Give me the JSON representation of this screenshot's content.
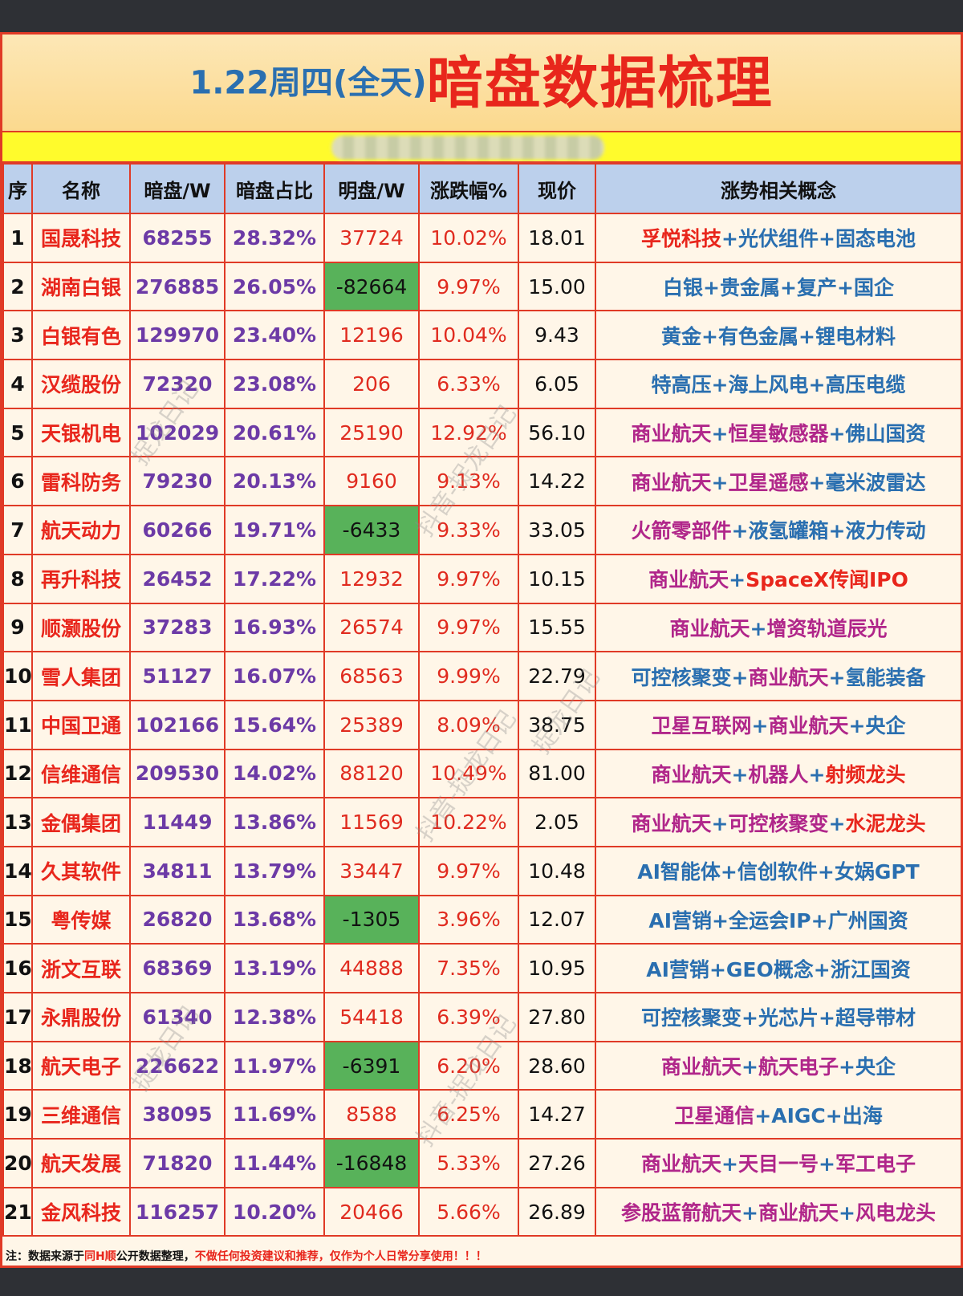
{
  "title": {
    "date": "1.22周四(全天)",
    "main": "暗盘数据梳理"
  },
  "headers": [
    "序",
    "名称",
    "暗盘/W",
    "暗盘占比",
    "明盘/W",
    "涨跌幅%",
    "现价",
    "涨势相关概念"
  ],
  "rows": [
    {
      "idx": "1",
      "name": "国晟科技",
      "dark": "68255",
      "ratio": "28.32%",
      "lit": "37724",
      "lit_negative": false,
      "change": "10.02%",
      "price": "18.01",
      "concept": [
        {
          "t": "孚悦科技",
          "c": "red"
        },
        {
          "t": "光伏组件",
          "c": "blue"
        },
        {
          "t": "固态电池",
          "c": "blue"
        }
      ]
    },
    {
      "idx": "2",
      "name": "湖南白银",
      "dark": "276885",
      "ratio": "26.05%",
      "lit": "-82664",
      "lit_negative": true,
      "change": "9.97%",
      "price": "15.00",
      "concept": [
        {
          "t": "白银",
          "c": "blue"
        },
        {
          "t": "贵金属",
          "c": "blue"
        },
        {
          "t": "复产",
          "c": "blue"
        },
        {
          "t": "国企",
          "c": "blue"
        }
      ]
    },
    {
      "idx": "3",
      "name": "白银有色",
      "dark": "129970",
      "ratio": "23.40%",
      "lit": "12196",
      "lit_negative": false,
      "change": "10.04%",
      "price": "9.43",
      "concept": [
        {
          "t": "黄金",
          "c": "blue"
        },
        {
          "t": "有色金属",
          "c": "blue"
        },
        {
          "t": "锂电材料",
          "c": "blue"
        }
      ]
    },
    {
      "idx": "4",
      "name": "汉缆股份",
      "dark": "72320",
      "ratio": "23.08%",
      "lit": "206",
      "lit_negative": false,
      "change": "6.33%",
      "price": "6.05",
      "concept": [
        {
          "t": "特高压",
          "c": "blue"
        },
        {
          "t": "海上风电",
          "c": "blue"
        },
        {
          "t": "高压电缆",
          "c": "blue"
        }
      ]
    },
    {
      "idx": "5",
      "name": "天银机电",
      "dark": "102029",
      "ratio": "20.61%",
      "lit": "25190",
      "lit_negative": false,
      "change": "12.92%",
      "price": "56.10",
      "concept": [
        {
          "t": "商业航天",
          "c": "purple"
        },
        {
          "t": "恒星敏感器",
          "c": "purple"
        },
        {
          "t": "佛山国资",
          "c": "blue"
        }
      ]
    },
    {
      "idx": "6",
      "name": "雷科防务",
      "dark": "79230",
      "ratio": "20.13%",
      "lit": "9160",
      "lit_negative": false,
      "change": "9.13%",
      "price": "14.22",
      "concept": [
        {
          "t": "商业航天",
          "c": "purple"
        },
        {
          "t": "卫星遥感",
          "c": "purple"
        },
        {
          "t": "毫米波雷达",
          "c": "blue"
        }
      ]
    },
    {
      "idx": "7",
      "name": "航天动力",
      "dark": "60266",
      "ratio": "19.71%",
      "lit": "-6433",
      "lit_negative": true,
      "change": "9.33%",
      "price": "33.05",
      "concept": [
        {
          "t": "火箭零部件",
          "c": "purple"
        },
        {
          "t": "液氢罐箱",
          "c": "blue"
        },
        {
          "t": "液力传动",
          "c": "blue"
        }
      ]
    },
    {
      "idx": "8",
      "name": "再升科技",
      "dark": "26452",
      "ratio": "17.22%",
      "lit": "12932",
      "lit_negative": false,
      "change": "9.97%",
      "price": "10.15",
      "concept": [
        {
          "t": "商业航天",
          "c": "purple"
        },
        {
          "t": "SpaceX传闻IPO",
          "c": "red"
        }
      ]
    },
    {
      "idx": "9",
      "name": "顺灏股份",
      "dark": "37283",
      "ratio": "16.93%",
      "lit": "26574",
      "lit_negative": false,
      "change": "9.97%",
      "price": "15.55",
      "concept": [
        {
          "t": "商业航天",
          "c": "purple"
        },
        {
          "t": "增资轨道辰光",
          "c": "purple"
        }
      ]
    },
    {
      "idx": "10",
      "name": "雪人集团",
      "dark": "51127",
      "ratio": "16.07%",
      "lit": "68563",
      "lit_negative": false,
      "change": "9.99%",
      "price": "22.79",
      "concept": [
        {
          "t": "可控核聚变",
          "c": "blue"
        },
        {
          "t": "商业航天",
          "c": "purple"
        },
        {
          "t": "氢能装备",
          "c": "blue"
        }
      ]
    },
    {
      "idx": "11",
      "name": "中国卫通",
      "dark": "102166",
      "ratio": "15.64%",
      "lit": "25389",
      "lit_negative": false,
      "change": "8.09%",
      "price": "38.75",
      "concept": [
        {
          "t": "卫星互联网",
          "c": "purple"
        },
        {
          "t": "商业航天",
          "c": "purple"
        },
        {
          "t": "央企",
          "c": "blue"
        }
      ]
    },
    {
      "idx": "12",
      "name": "信维通信",
      "dark": "209530",
      "ratio": "14.02%",
      "lit": "88120",
      "lit_negative": false,
      "change": "10.49%",
      "price": "81.00",
      "concept": [
        {
          "t": "商业航天",
          "c": "purple"
        },
        {
          "t": "机器人",
          "c": "purple"
        },
        {
          "t": "射频龙头",
          "c": "red"
        }
      ]
    },
    {
      "idx": "13",
      "name": "金偶集团",
      "dark": "11449",
      "ratio": "13.86%",
      "lit": "11569",
      "lit_negative": false,
      "change": "10.22%",
      "price": "2.05",
      "concept": [
        {
          "t": "商业航天",
          "c": "purple"
        },
        {
          "t": "可控核聚变",
          "c": "purple"
        },
        {
          "t": "水泥龙头",
          "c": "red"
        }
      ]
    },
    {
      "idx": "14",
      "name": "久其软件",
      "dark": "34811",
      "ratio": "13.79%",
      "lit": "33447",
      "lit_negative": false,
      "change": "9.97%",
      "price": "10.48",
      "concept": [
        {
          "t": "AI智能体",
          "c": "blue"
        },
        {
          "t": "信创软件",
          "c": "blue"
        },
        {
          "t": "女娲GPT",
          "c": "blue"
        }
      ]
    },
    {
      "idx": "15",
      "name": "粤传媒",
      "dark": "26820",
      "ratio": "13.68%",
      "lit": "-1305",
      "lit_negative": true,
      "change": "3.96%",
      "price": "12.07",
      "concept": [
        {
          "t": "AI营销",
          "c": "blue"
        },
        {
          "t": "全运会IP",
          "c": "blue"
        },
        {
          "t": "广州国资",
          "c": "blue"
        }
      ]
    },
    {
      "idx": "16",
      "name": "浙文互联",
      "dark": "68369",
      "ratio": "13.19%",
      "lit": "44888",
      "lit_negative": false,
      "change": "7.35%",
      "price": "10.95",
      "concept": [
        {
          "t": "AI营销",
          "c": "blue"
        },
        {
          "t": "GEO概念",
          "c": "blue"
        },
        {
          "t": "浙江国资",
          "c": "blue"
        }
      ]
    },
    {
      "idx": "17",
      "name": "永鼎股份",
      "dark": "61340",
      "ratio": "12.38%",
      "lit": "54418",
      "lit_negative": false,
      "change": "6.39%",
      "price": "27.80",
      "concept": [
        {
          "t": "可控核聚变",
          "c": "blue"
        },
        {
          "t": "光芯片",
          "c": "blue"
        },
        {
          "t": "超导带材",
          "c": "blue"
        }
      ]
    },
    {
      "idx": "18",
      "name": "航天电子",
      "dark": "226622",
      "ratio": "11.97%",
      "lit": "-6391",
      "lit_negative": true,
      "change": "6.20%",
      "price": "28.60",
      "concept": [
        {
          "t": "商业航天",
          "c": "purple"
        },
        {
          "t": "航天电子",
          "c": "purple"
        },
        {
          "t": "央企",
          "c": "blue"
        }
      ]
    },
    {
      "idx": "19",
      "name": "三维通信",
      "dark": "38095",
      "ratio": "11.69%",
      "lit": "8588",
      "lit_negative": false,
      "change": "6.25%",
      "price": "14.27",
      "concept": [
        {
          "t": "卫星通信",
          "c": "purple"
        },
        {
          "t": "AIGC",
          "c": "blue"
        },
        {
          "t": "出海",
          "c": "blue"
        }
      ]
    },
    {
      "idx": "20",
      "name": "航天发展",
      "dark": "71820",
      "ratio": "11.44%",
      "lit": "-16848",
      "lit_negative": true,
      "change": "5.33%",
      "price": "27.26",
      "concept": [
        {
          "t": "商业航天",
          "c": "purple"
        },
        {
          "t": "天目一号",
          "c": "purple"
        },
        {
          "t": "军工电子",
          "c": "purple"
        }
      ]
    },
    {
      "idx": "21",
      "name": "金风科技",
      "dark": "116257",
      "ratio": "10.20%",
      "lit": "20466",
      "lit_negative": false,
      "change": "5.66%",
      "price": "26.89",
      "concept": [
        {
          "t": "参股蓝箭航天",
          "c": "purple"
        },
        {
          "t": "商业航天",
          "c": "purple"
        },
        {
          "t": "风电龙头",
          "c": "purple"
        }
      ]
    }
  ],
  "note": {
    "prefix": "注：数据来源于",
    "source": "同H顺",
    "middle": "公开数据整理，",
    "warning": "不做任何投资建议和推荐，",
    "suffix": "仅作为个人日常分享使用！！！"
  },
  "watermarks": [
    "捉龙日记",
    "抖音-捉龙日记"
  ]
}
